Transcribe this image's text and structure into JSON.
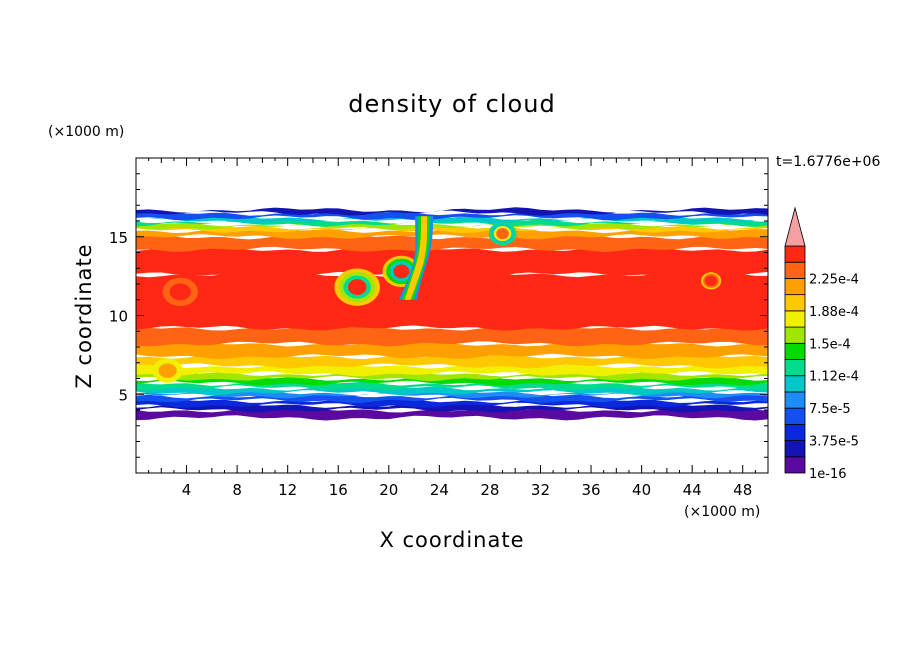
{
  "chart_data": {
    "type": "heatmap",
    "title": "density of cloud",
    "xlabel": "X coordinate",
    "ylabel": "Z coordinate",
    "x_unit": "(×1000 m)",
    "y_unit": "(×1000 m)",
    "time_label": "t=1.6776e+06",
    "xlim": [
      0,
      50
    ],
    "ylim": [
      0,
      20
    ],
    "x_ticks": [
      4,
      8,
      12,
      16,
      20,
      24,
      28,
      32,
      36,
      40,
      44,
      48
    ],
    "y_ticks": [
      5,
      10,
      15
    ],
    "colorbar": {
      "levels": [
        {
          "label": "1e-16",
          "color": "#5a0aa0"
        },
        {
          "label": "",
          "color": "#1414b4"
        },
        {
          "label": "3.75e-5",
          "color": "#0a28dc"
        },
        {
          "label": "",
          "color": "#1450f0"
        },
        {
          "label": "7.5e-5",
          "color": "#1e8cf5"
        },
        {
          "label": "",
          "color": "#00c8c8"
        },
        {
          "label": "1.12e-4",
          "color": "#00dc8c"
        },
        {
          "label": "",
          "color": "#00dc00"
        },
        {
          "label": "1.5e-4",
          "color": "#a0e600"
        },
        {
          "label": "",
          "color": "#f0f000"
        },
        {
          "label": "1.88e-4",
          "color": "#ffc800"
        },
        {
          "label": "",
          "color": "#ffa000"
        },
        {
          "label": "2.25e-4",
          "color": "#ff6414"
        },
        {
          "label": "",
          "color": "#ff2814"
        }
      ],
      "over_color": "#f4a0a0"
    },
    "profile": [
      {
        "z": 3.5,
        "level": 0
      },
      {
        "z": 4.0,
        "level": 1
      },
      {
        "z": 4.3,
        "level": 2
      },
      {
        "z": 4.6,
        "level": 3
      },
      {
        "z": 4.9,
        "level": 4
      },
      {
        "z": 5.1,
        "level": 5
      },
      {
        "z": 5.4,
        "level": 6
      },
      {
        "z": 5.7,
        "level": 7
      },
      {
        "z": 6.0,
        "level": 8
      },
      {
        "z": 6.3,
        "level": 9
      },
      {
        "z": 6.8,
        "level": 10
      },
      {
        "z": 7.4,
        "level": 11
      },
      {
        "z": 8.2,
        "level": 12
      },
      {
        "z": 9.2,
        "level": 13
      },
      {
        "z": 12.6,
        "level": 13
      },
      {
        "z": 14.2,
        "level": 12
      },
      {
        "z": 15.0,
        "level": 11
      },
      {
        "z": 15.4,
        "level": 10
      },
      {
        "z": 15.6,
        "level": 8
      },
      {
        "z": 15.8,
        "level": 6
      },
      {
        "z": 16.0,
        "level": 5
      },
      {
        "z": 16.2,
        "level": 3
      },
      {
        "z": 16.5,
        "level": 1
      },
      {
        "z": 16.7,
        "level": 0
      }
    ],
    "features": [
      {
        "kind": "swirl",
        "x": 17.5,
        "z": 11.8,
        "r": 1.6,
        "levels": [
          10,
          8,
          6,
          13
        ]
      },
      {
        "kind": "swirl",
        "x": 21.0,
        "z": 12.8,
        "r": 1.3,
        "levels": [
          10,
          7,
          5,
          13
        ]
      },
      {
        "kind": "plume",
        "x0": 22.8,
        "z0": 16.3,
        "x1": 21.5,
        "z1": 11.0,
        "levels": [
          4,
          7,
          10
        ]
      },
      {
        "kind": "swirl",
        "x": 29.0,
        "z": 15.2,
        "r": 0.9,
        "levels": [
          6,
          5,
          9,
          12
        ]
      },
      {
        "kind": "swirl",
        "x": 45.5,
        "z": 12.2,
        "r": 0.6,
        "levels": [
          10,
          12,
          13
        ]
      },
      {
        "kind": "patch",
        "x": 2.5,
        "z": 6.5,
        "r": 1.2,
        "levels": [
          9,
          11
        ]
      },
      {
        "kind": "patch",
        "x": 3.5,
        "z": 11.5,
        "r": 1.4,
        "levels": [
          12,
          13
        ]
      }
    ]
  }
}
